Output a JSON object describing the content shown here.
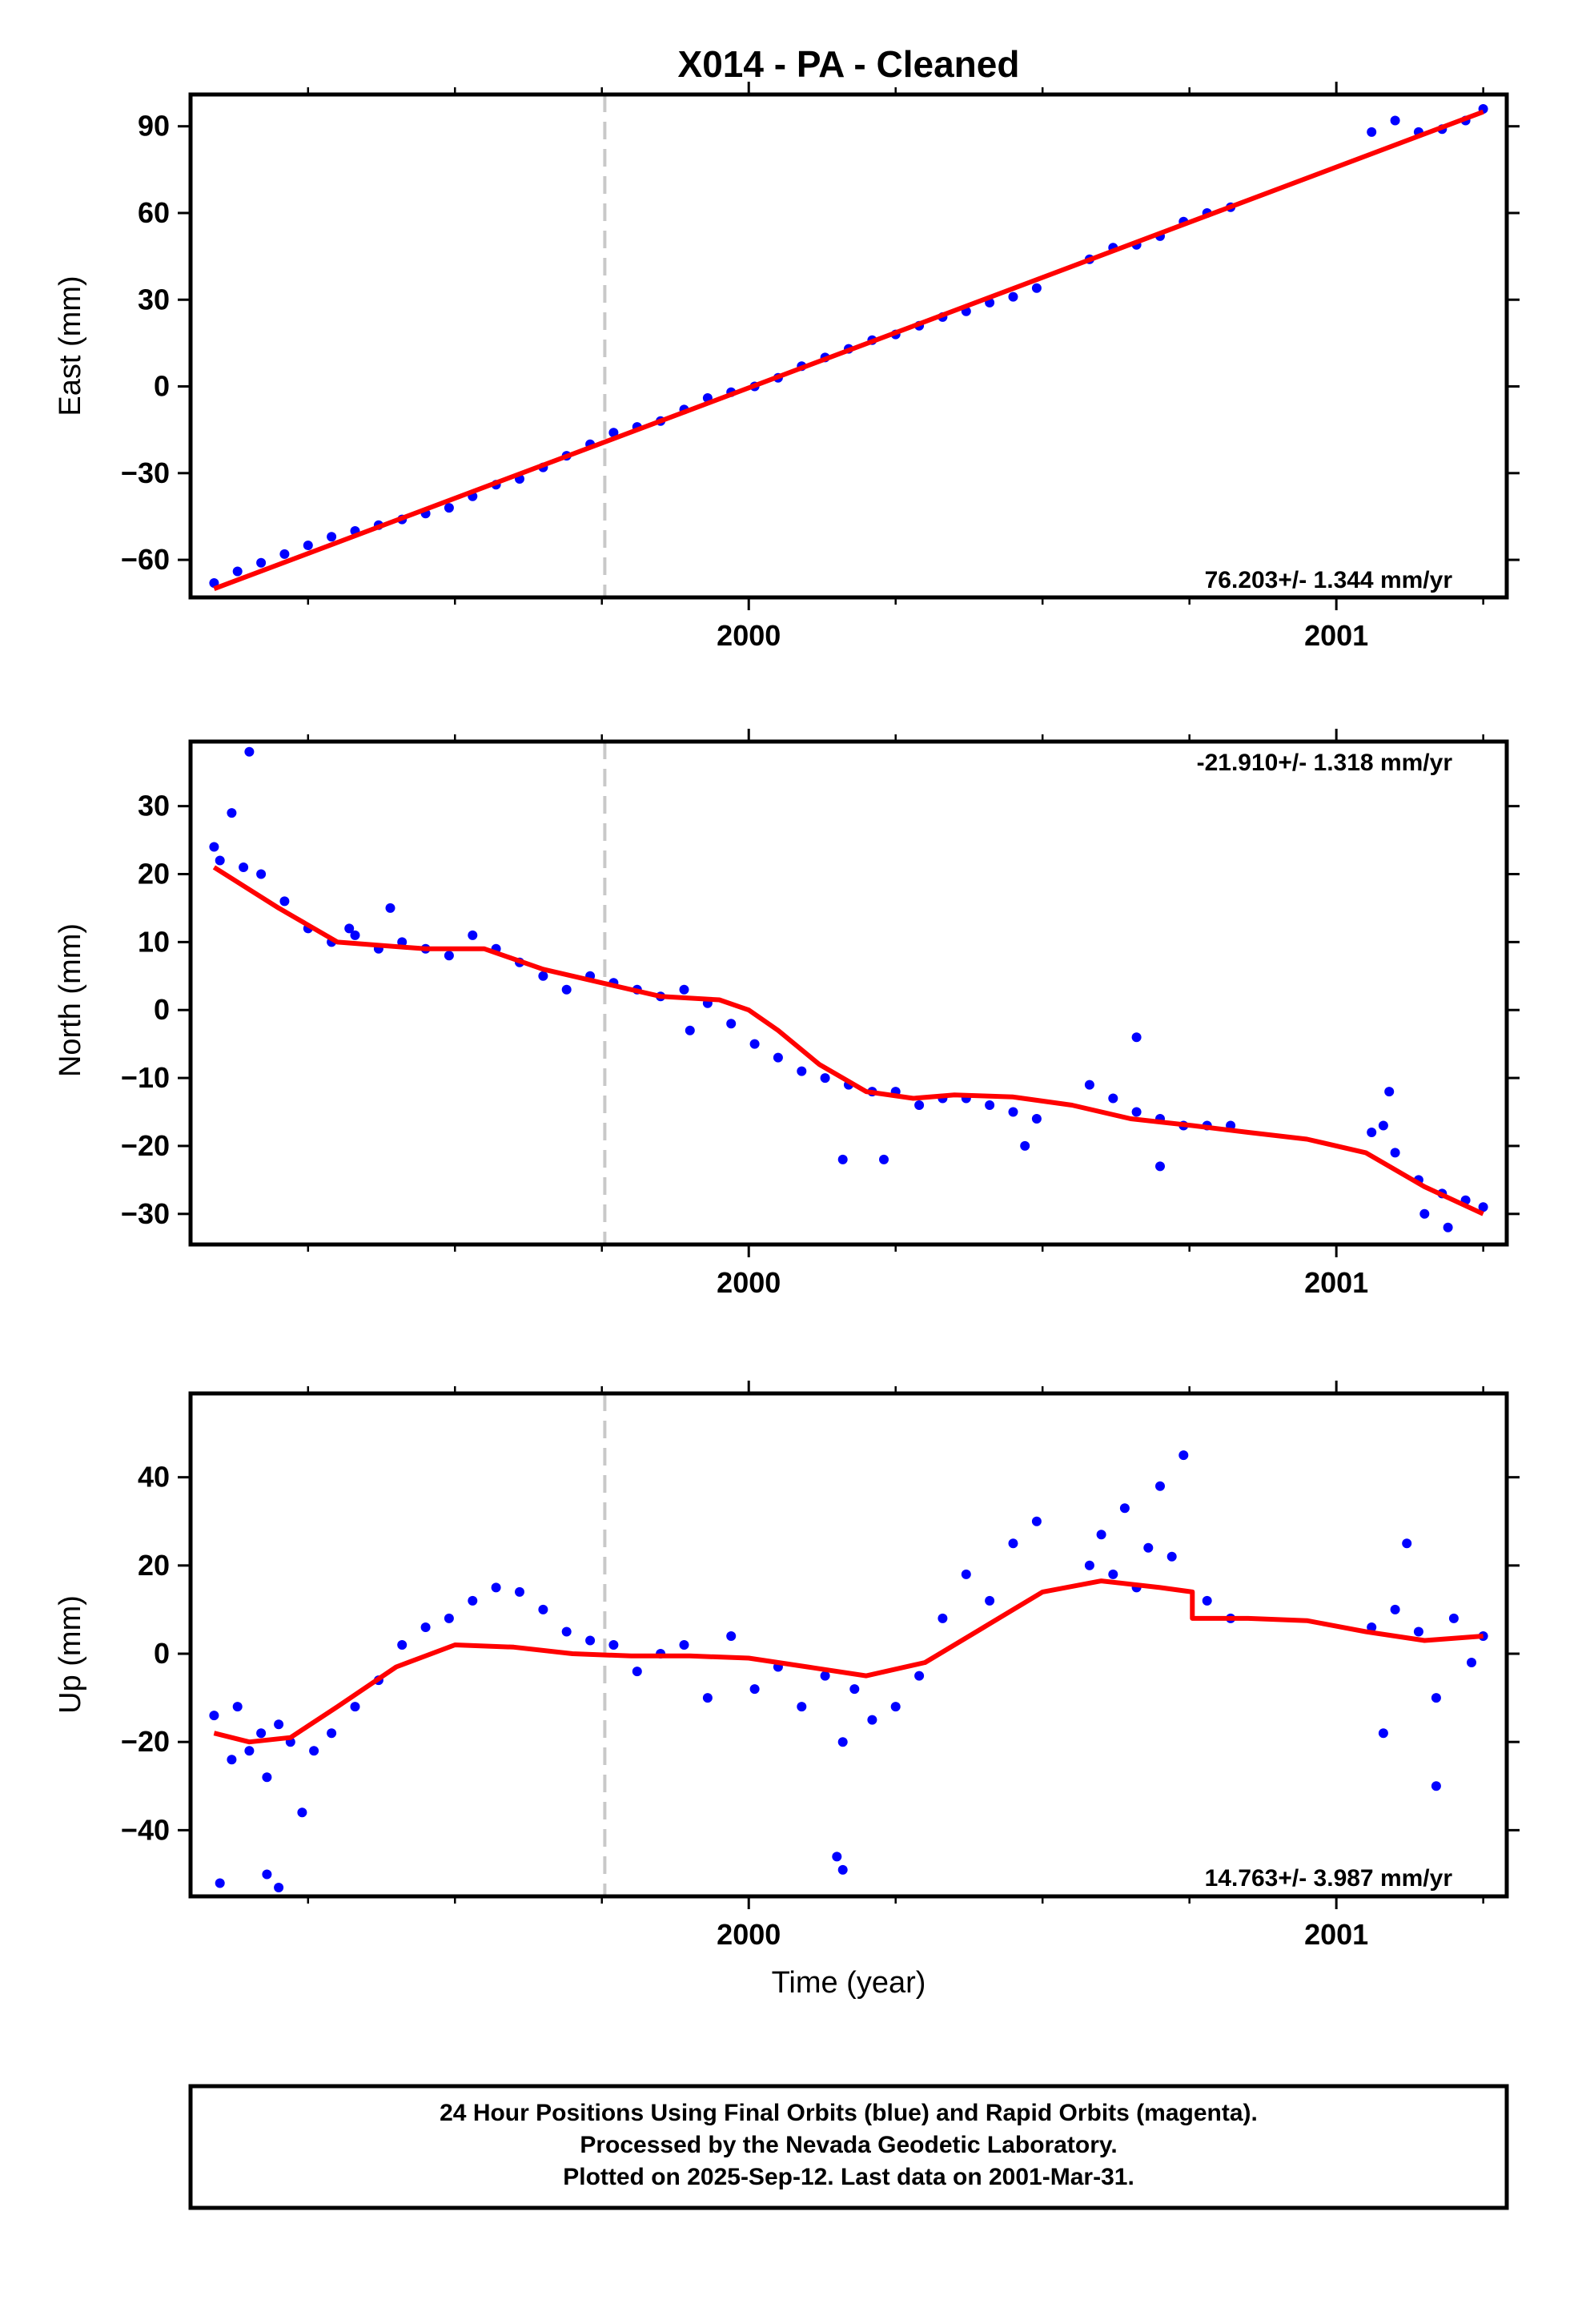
{
  "title": "X014  - PA - Cleaned",
  "xlabel": "Time (year)",
  "footer": {
    "line1": "24 Hour Positions Using Final Orbits (blue) and Rapid Orbits (magenta).",
    "line2": "Processed by the Nevada Geodetic Laboratory.",
    "line3": "Plotted on 2025-Sep-12. Last data on 2001-Mar-31."
  },
  "colors": {
    "points": "#0000ff",
    "model": "#ff0000",
    "break_line": "#c8c8c8",
    "axes": "#000000"
  },
  "chart_data": [
    {
      "type": "scatter",
      "component": "East",
      "ylabel": "East (mm)",
      "rate_label": "76.203+/- 1.344 mm/yr",
      "rate_placement": "bottom-right",
      "xlim": [
        1999.05,
        2001.29
      ],
      "ylim": [
        -73,
        101
      ],
      "x_ticks": [
        2000,
        2001
      ],
      "x_tick_labels": [
        "2000",
        "2001"
      ],
      "y_ticks": [
        -60,
        -30,
        0,
        30,
        60,
        90
      ],
      "y_tick_labels": [
        "−60",
        "−30",
        "0",
        "30",
        "60",
        "90"
      ],
      "break_x": 1999.755,
      "series": [
        {
          "kind": "points",
          "x": [
            1999.09,
            1999.13,
            1999.17,
            1999.21,
            1999.25,
            1999.29,
            1999.33,
            1999.37,
            1999.41,
            1999.45,
            1999.49,
            1999.53,
            1999.57,
            1999.61,
            1999.65,
            1999.69,
            1999.73,
            1999.77,
            1999.81,
            1999.85,
            1999.89,
            1999.93,
            1999.97,
            2000.01,
            2000.05,
            2000.09,
            2000.13,
            2000.17,
            2000.21,
            2000.25,
            2000.29,
            2000.33,
            2000.37,
            2000.41,
            2000.45,
            2000.49,
            2000.58,
            2000.62,
            2000.66,
            2000.7,
            2000.74,
            2000.78,
            2000.82,
            2001.06,
            2001.1,
            2001.14,
            2001.18,
            2001.22,
            2001.25
          ],
          "y": [
            -68,
            -64,
            -61,
            -58,
            -55,
            -52,
            -50,
            -48,
            -46,
            -44,
            -42,
            -38,
            -34,
            -32,
            -28,
            -24,
            -20,
            -16,
            -14,
            -12,
            -8,
            -4,
            -2,
            0,
            3,
            7,
            10,
            13,
            16,
            18,
            21,
            24,
            26,
            29,
            31,
            34,
            44,
            48,
            49,
            52,
            57,
            60,
            62,
            88,
            92,
            88,
            89,
            92,
            96
          ]
        },
        {
          "kind": "model",
          "x": [
            1999.09,
            2001.25
          ],
          "y": [
            -70,
            95
          ]
        }
      ]
    },
    {
      "type": "scatter",
      "component": "North",
      "ylabel": "North (mm)",
      "rate_label": "-21.910+/- 1.318 mm/yr",
      "rate_placement": "top-right",
      "xlim": [
        1999.05,
        2001.29
      ],
      "ylim": [
        -34.5,
        39.5
      ],
      "x_ticks": [
        2000,
        2001
      ],
      "x_tick_labels": [
        "2000",
        "2001"
      ],
      "y_ticks": [
        -30,
        -20,
        -10,
        0,
        10,
        20,
        30
      ],
      "y_tick_labels": [
        "−30",
        "−20",
        "−10",
        "0",
        "10",
        "20",
        "30"
      ],
      "break_x": 1999.755,
      "series": [
        {
          "kind": "points",
          "x": [
            1999.09,
            1999.1,
            1999.12,
            1999.14,
            1999.17,
            1999.21,
            1999.25,
            1999.29,
            1999.33,
            1999.37,
            1999.41,
            1999.45,
            1999.49,
            1999.53,
            1999.57,
            1999.61,
            1999.65,
            1999.69,
            1999.73,
            1999.77,
            1999.81,
            1999.85,
            1999.89,
            1999.93,
            1999.97,
            2000.01,
            2000.05,
            2000.09,
            2000.13,
            2000.17,
            2000.21,
            2000.25,
            2000.29,
            2000.33,
            2000.37,
            2000.41,
            2000.45,
            2000.49,
            2000.58,
            2000.62,
            2000.66,
            2000.7,
            2000.74,
            2000.78,
            2000.82,
            2001.06,
            2001.08,
            2001.1,
            2001.14,
            2001.18,
            2001.22,
            2001.25,
            1999.15,
            1999.32,
            1999.39,
            1999.9,
            2000.16,
            2000.23,
            2000.47,
            2000.66,
            2000.7,
            2001.09,
            2001.15,
            2001.19
          ],
          "y": [
            24,
            22,
            29,
            21,
            20,
            16,
            12,
            10,
            11,
            9,
            10,
            9,
            8,
            11,
            9,
            7,
            5,
            3,
            5,
            4,
            3,
            2,
            3,
            1,
            -2,
            -5,
            -7,
            -9,
            -10,
            -11,
            -12,
            -12,
            -14,
            -13,
            -13,
            -14,
            -15,
            -16,
            -11,
            -13,
            -15,
            -16,
            -17,
            -17,
            -17,
            -18,
            -17,
            -21,
            -25,
            -27,
            -28,
            -29,
            38,
            12,
            15,
            -3,
            -22,
            -22,
            -20,
            -4,
            -23,
            -12,
            -30,
            -32
          ]
        },
        {
          "kind": "model",
          "x": [
            1999.09,
            1999.2,
            1999.3,
            1999.45,
            1999.55,
            1999.65,
            1999.75,
            1999.85,
            1999.95,
            2000.0,
            2000.05,
            2000.12,
            2000.2,
            2000.28,
            2000.35,
            2000.45,
            2000.55,
            2000.65,
            2000.755,
            2000.85,
            2000.95,
            2001.05,
            2001.15,
            2001.25
          ],
          "y": [
            21,
            15,
            10,
            9,
            9,
            6,
            4,
            2,
            1.5,
            0,
            -3,
            -8,
            -12,
            -13,
            -12.5,
            -12.8,
            -14,
            -16,
            -17,
            -18,
            -19,
            -21,
            -26,
            -30
          ]
        }
      ]
    },
    {
      "type": "scatter",
      "component": "Up",
      "ylabel": "Up (mm)",
      "rate_label": "14.763+/- 3.987 mm/yr",
      "rate_placement": "bottom-right",
      "xlim": [
        1999.05,
        2001.29
      ],
      "ylim": [
        -55,
        59
      ],
      "x_ticks": [
        2000,
        2001
      ],
      "x_tick_labels": [
        "2000",
        "2001"
      ],
      "y_ticks": [
        -40,
        -20,
        0,
        20,
        40
      ],
      "y_tick_labels": [
        "−40",
        "−20",
        "0",
        "20",
        "40"
      ],
      "break_x": 1999.755,
      "series": [
        {
          "kind": "points",
          "x": [
            1999.09,
            1999.1,
            1999.12,
            1999.13,
            1999.15,
            1999.17,
            1999.18,
            1999.2,
            1999.22,
            1999.24,
            1999.26,
            1999.29,
            1999.33,
            1999.37,
            1999.41,
            1999.45,
            1999.49,
            1999.53,
            1999.57,
            1999.61,
            1999.65,
            1999.69,
            1999.73,
            1999.77,
            1999.81,
            1999.85,
            1999.89,
            1999.93,
            1999.97,
            2000.01,
            2000.05,
            2000.09,
            2000.13,
            2000.16,
            2000.18,
            2000.21,
            2000.25,
            2000.29,
            2000.33,
            2000.37,
            2000.41,
            2000.45,
            2000.49,
            2000.58,
            2000.6,
            2000.62,
            2000.64,
            2000.66,
            2000.68,
            2000.7,
            2000.72,
            2000.74,
            2000.78,
            2000.82,
            2001.06,
            2001.08,
            2001.1,
            2001.12,
            2001.14,
            2001.17,
            2001.2,
            2001.23,
            2001.25,
            1999.18,
            1999.2,
            2000.15,
            2000.16,
            2001.17
          ],
          "y": [
            -14,
            -52,
            -24,
            -12,
            -22,
            -18,
            -28,
            -16,
            -20,
            -36,
            -22,
            -18,
            -12,
            -6,
            2,
            6,
            8,
            12,
            15,
            14,
            10,
            5,
            3,
            2,
            -4,
            0,
            2,
            -10,
            4,
            -8,
            -3,
            -12,
            -5,
            -20,
            -8,
            -15,
            -12,
            -5,
            8,
            18,
            12,
            25,
            30,
            20,
            27,
            18,
            33,
            15,
            24,
            38,
            22,
            45,
            12,
            8,
            6,
            -18,
            10,
            25,
            5,
            -10,
            8,
            -2,
            4,
            -50,
            -53,
            -46,
            -49,
            -30
          ],
          "_note": ""
        },
        {
          "kind": "model",
          "x": [
            1999.09,
            1999.15,
            1999.22,
            1999.3,
            1999.4,
            1999.5,
            1999.6,
            1999.7,
            1999.8,
            1999.9,
            2000.0,
            2000.1,
            2000.2,
            2000.3,
            2000.4,
            2000.5,
            2000.6,
            2000.7,
            2000.755,
            2000.755,
            2000.85,
            2000.95,
            2001.05,
            2001.15,
            2001.25
          ],
          "y": [
            -18,
            -20,
            -19,
            -12,
            -3,
            2,
            1.5,
            0,
            -0.5,
            -0.5,
            -1,
            -3,
            -5,
            -2,
            6,
            14,
            16.5,
            15,
            14,
            8,
            8,
            7.5,
            5,
            3,
            4
          ]
        }
      ]
    }
  ]
}
